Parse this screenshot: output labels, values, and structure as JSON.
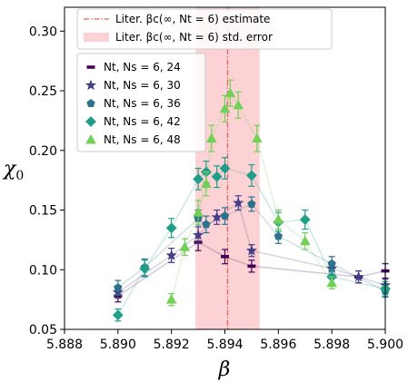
{
  "chart_data": {
    "type": "scatter",
    "xlabel": "β",
    "ylabel": "χ0",
    "xlim": [
      5.888,
      5.9
    ],
    "ylim": [
      0.05,
      0.32
    ],
    "x_ticks": [
      "5.888",
      "5.890",
      "5.892",
      "5.894",
      "5.896",
      "5.898",
      "5.900"
    ],
    "y_ticks": [
      "0.05",
      "0.10",
      "0.15",
      "0.20",
      "0.25",
      "0.30"
    ],
    "grid": false,
    "reference_line": {
      "x": 5.8941,
      "label": "Liter. βc(∞, Nt = 6) estimate",
      "color": "#e8605c"
    },
    "reference_band": {
      "x_from": 5.8929,
      "x_to": 5.8953,
      "label": "Liter. βc(∞, Nt = 6) std. error",
      "color": "#fcd2d4"
    },
    "legend_position": "upper-left",
    "series": [
      {
        "name": "Nt, Ns = 6, 24",
        "marker": "dash",
        "color": "#440154",
        "points": [
          {
            "x": 5.89,
            "y": 0.078,
            "err": 0.005
          },
          {
            "x": 5.893,
            "y": 0.123,
            "err": 0.007
          },
          {
            "x": 5.894,
            "y": 0.111,
            "err": 0.006
          },
          {
            "x": 5.895,
            "y": 0.103,
            "err": 0.005
          },
          {
            "x": 5.899,
            "y": 0.094,
            "err": 0.005
          },
          {
            "x": 5.9,
            "y": 0.099,
            "err": 0.006
          }
        ]
      },
      {
        "name": "Nt, Ns = 6, 30",
        "marker": "star",
        "color": "#433e85",
        "points": [
          {
            "x": 5.89,
            "y": 0.081,
            "err": 0.005
          },
          {
            "x": 5.892,
            "y": 0.112,
            "err": 0.006
          },
          {
            "x": 5.893,
            "y": 0.129,
            "err": 0.007
          },
          {
            "x": 5.8937,
            "y": 0.144,
            "err": 0.006
          },
          {
            "x": 5.8945,
            "y": 0.156,
            "err": 0.006
          },
          {
            "x": 5.895,
            "y": 0.116,
            "err": 0.005
          },
          {
            "x": 5.898,
            "y": 0.101,
            "err": 0.005
          },
          {
            "x": 5.899,
            "y": 0.094,
            "err": 0.005
          },
          {
            "x": 5.9,
            "y": 0.087,
            "err": 0.005
          }
        ]
      },
      {
        "name": "Nt, Ns = 6, 36",
        "marker": "pentagon",
        "color": "#2c718e",
        "points": [
          {
            "x": 5.89,
            "y": 0.085,
            "err": 0.006
          },
          {
            "x": 5.891,
            "y": 0.102,
            "err": 0.007
          },
          {
            "x": 5.893,
            "y": 0.143,
            "err": 0.007
          },
          {
            "x": 5.8933,
            "y": 0.138,
            "err": 0.007
          },
          {
            "x": 5.894,
            "y": 0.145,
            "err": 0.007
          },
          {
            "x": 5.895,
            "y": 0.155,
            "err": 0.006
          },
          {
            "x": 5.896,
            "y": 0.128,
            "err": 0.006
          },
          {
            "x": 5.898,
            "y": 0.105,
            "err": 0.006
          },
          {
            "x": 5.9,
            "y": 0.082,
            "err": 0.005
          }
        ]
      },
      {
        "name": "Nt, Ns = 6, 42",
        "marker": "diamond",
        "color": "#1f9e89",
        "points": [
          {
            "x": 5.89,
            "y": 0.062,
            "err": 0.005
          },
          {
            "x": 5.891,
            "y": 0.101,
            "err": 0.007
          },
          {
            "x": 5.892,
            "y": 0.135,
            "err": 0.008
          },
          {
            "x": 5.893,
            "y": 0.176,
            "err": 0.009
          },
          {
            "x": 5.8933,
            "y": 0.182,
            "err": 0.009
          },
          {
            "x": 5.8937,
            "y": 0.178,
            "err": 0.009
          },
          {
            "x": 5.894,
            "y": 0.185,
            "err": 0.009
          },
          {
            "x": 5.895,
            "y": 0.179,
            "err": 0.009
          },
          {
            "x": 5.896,
            "y": 0.14,
            "err": 0.008
          },
          {
            "x": 5.897,
            "y": 0.142,
            "err": 0.008
          },
          {
            "x": 5.898,
            "y": 0.094,
            "err": 0.006
          },
          {
            "x": 5.9,
            "y": 0.084,
            "err": 0.006
          }
        ]
      },
      {
        "name": "Nt, Ns = 6, 48",
        "marker": "triangle",
        "color": "#73d056",
        "points": [
          {
            "x": 5.892,
            "y": 0.075,
            "err": 0.005
          },
          {
            "x": 5.8925,
            "y": 0.119,
            "err": 0.007
          },
          {
            "x": 5.893,
            "y": 0.148,
            "err": 0.01
          },
          {
            "x": 5.8933,
            "y": 0.172,
            "err": 0.01
          },
          {
            "x": 5.8935,
            "y": 0.21,
            "err": 0.011
          },
          {
            "x": 5.894,
            "y": 0.235,
            "err": 0.011
          },
          {
            "x": 5.8942,
            "y": 0.248,
            "err": 0.011
          },
          {
            "x": 5.8945,
            "y": 0.238,
            "err": 0.011
          },
          {
            "x": 5.8952,
            "y": 0.21,
            "err": 0.011
          },
          {
            "x": 5.896,
            "y": 0.142,
            "err": 0.008
          },
          {
            "x": 5.897,
            "y": 0.124,
            "err": 0.007
          },
          {
            "x": 5.898,
            "y": 0.089,
            "err": 0.005
          }
        ]
      }
    ]
  }
}
